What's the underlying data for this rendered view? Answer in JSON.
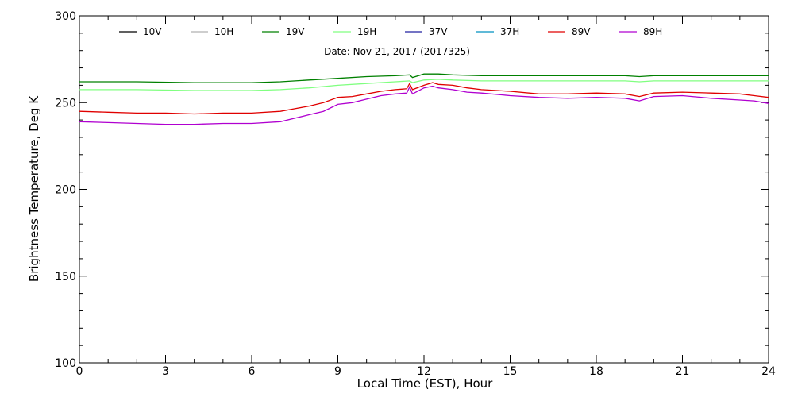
{
  "chart_data": {
    "type": "line",
    "title": "",
    "subtitle": "Date: Nov 21, 2017 (2017325)",
    "xlabel": "Local Time (EST), Hour",
    "ylabel": "Brightness Temperature, Deg K",
    "xlim": [
      0,
      24
    ],
    "ylim": [
      100,
      300
    ],
    "xticks": [
      0,
      3,
      6,
      9,
      12,
      15,
      18,
      21,
      24
    ],
    "yticks": [
      100,
      150,
      200,
      250,
      300
    ],
    "grid": false,
    "legend_position": "top",
    "series": [
      {
        "name": "10V",
        "color": "#000000",
        "x": [],
        "y": []
      },
      {
        "name": "10H",
        "color": "#b0b0b0",
        "x": [],
        "y": []
      },
      {
        "name": "19V",
        "color": "#008000",
        "x": [
          0,
          2,
          4,
          6,
          7,
          8,
          9,
          10,
          11,
          11.5,
          11.6,
          12,
          12.5,
          13,
          14,
          15,
          16,
          17,
          18,
          19,
          19.5,
          20,
          21,
          22,
          23,
          24
        ],
        "y": [
          262,
          262,
          261.5,
          261.5,
          262,
          263,
          264,
          265,
          265.5,
          266,
          264.5,
          266.5,
          266.5,
          266,
          265.5,
          265.5,
          265.5,
          265.5,
          265.5,
          265.5,
          265,
          265.5,
          265.5,
          265.5,
          265.5,
          265.5
        ]
      },
      {
        "name": "19H",
        "color": "#80ff80",
        "x": [
          0,
          2,
          4,
          6,
          7,
          8,
          9,
          10,
          11,
          11.5,
          11.6,
          12,
          12.5,
          13,
          14,
          15,
          16,
          17,
          18,
          19,
          19.5,
          20,
          21,
          22,
          23,
          24
        ],
        "y": [
          257.5,
          257.5,
          257,
          257,
          257.5,
          258.5,
          260,
          261,
          262,
          262.5,
          261.5,
          263,
          263.5,
          263,
          262.5,
          262.5,
          262.5,
          262.5,
          262.5,
          262.5,
          262,
          262.5,
          262.5,
          262.5,
          262.5,
          262.5
        ]
      },
      {
        "name": "37V",
        "color": "#2020a0",
        "x": [],
        "y": []
      },
      {
        "name": "37H",
        "color": "#0090c0",
        "x": [],
        "y": []
      },
      {
        "name": "89V",
        "color": "#e00000",
        "x": [
          0,
          1,
          2,
          3,
          4,
          5,
          6,
          7,
          7.5,
          8,
          8.5,
          9,
          9.5,
          10,
          10.5,
          11,
          11.4,
          11.5,
          11.6,
          12,
          12.3,
          12.5,
          13,
          13.5,
          14,
          15,
          16,
          17,
          18,
          19,
          19.5,
          20,
          21,
          22,
          23,
          23.5,
          24
        ],
        "y": [
          245,
          244.5,
          244,
          244,
          243.5,
          244,
          244,
          245,
          246.5,
          248,
          250,
          253,
          253.5,
          255,
          256.5,
          257.5,
          258,
          261,
          257.5,
          260,
          261.5,
          260.5,
          260,
          258.5,
          257.5,
          256.5,
          255,
          255,
          255.5,
          255,
          253.5,
          255.5,
          256,
          255.5,
          255,
          254,
          253
        ]
      },
      {
        "name": "89H",
        "color": "#b000d0",
        "x": [
          0,
          1,
          2,
          3,
          4,
          5,
          6,
          7,
          7.5,
          8,
          8.5,
          9,
          9.5,
          10,
          10.5,
          11,
          11.4,
          11.5,
          11.6,
          12,
          12.3,
          12.5,
          13,
          13.5,
          14,
          15,
          16,
          17,
          18,
          19,
          19.5,
          20,
          21,
          22,
          23,
          23.5,
          24
        ],
        "y": [
          239,
          238.5,
          238,
          237.5,
          237.5,
          238,
          238,
          239,
          241,
          243,
          245,
          249,
          250,
          252,
          254,
          255,
          255.5,
          259,
          255,
          258.5,
          259.5,
          258.5,
          257.5,
          256,
          255.5,
          254,
          253,
          252.5,
          253,
          252.5,
          251,
          253.5,
          254,
          252.5,
          251.5,
          251,
          249.5
        ]
      }
    ]
  }
}
